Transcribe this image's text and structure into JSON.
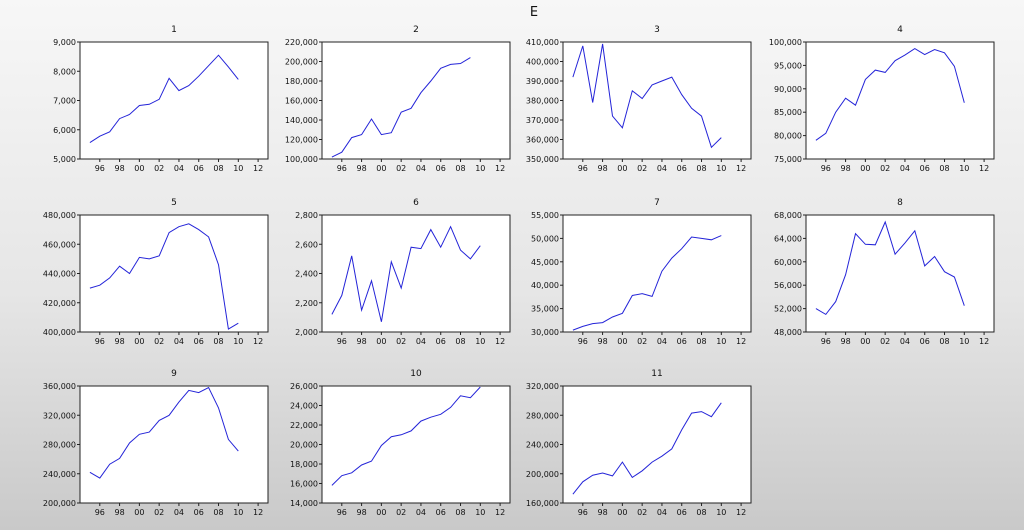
{
  "window": {
    "title": "E"
  },
  "colors": {
    "line": "#2424d8",
    "plot_bg": "#ffffff"
  },
  "x_tick_labels": [
    "96",
    "98",
    "00",
    "02",
    "04",
    "06",
    "08",
    "10",
    "12"
  ],
  "chart_data": [
    {
      "type": "line",
      "title": "1",
      "x": [
        1995,
        1996,
        1997,
        1998,
        1999,
        2000,
        2001,
        2002,
        2003,
        2004,
        2005,
        2006,
        2007,
        2008,
        2009,
        2010
      ],
      "y": [
        5560,
        5780,
        5930,
        6380,
        6520,
        6830,
        6870,
        7040,
        7760,
        7340,
        7510,
        7830,
        8190,
        8550,
        8150,
        7720
      ],
      "xlim": [
        1994,
        2013
      ],
      "ylim": [
        5000,
        9000
      ],
      "yticks": [
        "5,000",
        "6,000",
        "7,000",
        "8,000",
        "9,000"
      ],
      "grid": false
    },
    {
      "type": "line",
      "title": "2",
      "x": [
        1995,
        1996,
        1997,
        1998,
        1999,
        2000,
        2001,
        2002,
        2003,
        2004,
        2005,
        2006,
        2007,
        2008,
        2009
      ],
      "y": [
        102000,
        107000,
        122000,
        125000,
        141000,
        125000,
        127000,
        148000,
        152000,
        168000,
        180000,
        193000,
        197000,
        198000,
        204000
      ],
      "xlim": [
        1994,
        2013
      ],
      "ylim": [
        100000,
        220000
      ],
      "yticks": [
        "100,000",
        "120,000",
        "140,000",
        "160,000",
        "180,000",
        "200,000",
        "220,000"
      ],
      "grid": false
    },
    {
      "type": "line",
      "title": "3",
      "x": [
        1995,
        1996,
        1997,
        1998,
        1999,
        2000,
        2001,
        2002,
        2003,
        2004,
        2005,
        2006,
        2007,
        2008,
        2009,
        2010
      ],
      "y": [
        392000,
        408000,
        379000,
        409000,
        372000,
        366000,
        385000,
        381000,
        388000,
        390000,
        392000,
        383000,
        376000,
        372000,
        356000,
        361000
      ],
      "xlim": [
        1994,
        2013
      ],
      "ylim": [
        350000,
        410000
      ],
      "yticks": [
        "350,000",
        "360,000",
        "370,000",
        "380,000",
        "390,000",
        "400,000",
        "410,000"
      ],
      "grid": false
    },
    {
      "type": "line",
      "title": "4",
      "x": [
        1995,
        1996,
        1997,
        1998,
        1999,
        2000,
        2001,
        2002,
        2003,
        2004,
        2005,
        2006,
        2007,
        2008,
        2009,
        2010
      ],
      "y": [
        79000,
        80500,
        85000,
        88000,
        86500,
        92000,
        94000,
        93500,
        96000,
        97200,
        98600,
        97300,
        98400,
        97700,
        94800,
        87000
      ],
      "xlim": [
        1994,
        2013
      ],
      "ylim": [
        75000,
        100000
      ],
      "yticks": [
        "75,000",
        "80,000",
        "85,000",
        "90,000",
        "95,000",
        "100,000"
      ],
      "grid": false
    },
    {
      "type": "line",
      "title": "5",
      "x": [
        1995,
        1996,
        1997,
        1998,
        1999,
        2000,
        2001,
        2002,
        2003,
        2004,
        2005,
        2006,
        2007,
        2008,
        2009,
        2010
      ],
      "y": [
        430000,
        432000,
        437000,
        445000,
        440000,
        451000,
        450000,
        452000,
        468000,
        472000,
        474000,
        470000,
        465000,
        446000,
        402000,
        406000
      ],
      "xlim": [
        1994,
        2013
      ],
      "ylim": [
        400000,
        480000
      ],
      "yticks": [
        "400,000",
        "420,000",
        "440,000",
        "460,000",
        "480,000"
      ],
      "grid": false
    },
    {
      "type": "line",
      "title": "6",
      "x": [
        1995,
        1996,
        1997,
        1998,
        1999,
        2000,
        2001,
        2002,
        2003,
        2004,
        2005,
        2006,
        2007,
        2008,
        2009,
        2010
      ],
      "y": [
        2120,
        2250,
        2520,
        2150,
        2350,
        2070,
        2480,
        2300,
        2580,
        2570,
        2700,
        2580,
        2720,
        2560,
        2500,
        2590
      ],
      "xlim": [
        1994,
        2013
      ],
      "ylim": [
        2000,
        2800
      ],
      "yticks": [
        "2,000",
        "2,200",
        "2,400",
        "2,600",
        "2,800"
      ],
      "grid": false
    },
    {
      "type": "line",
      "title": "7",
      "x": [
        1995,
        1996,
        1997,
        1998,
        1999,
        2000,
        2001,
        2002,
        2003,
        2004,
        2005,
        2006,
        2007,
        2008,
        2009,
        2010
      ],
      "y": [
        30400,
        31200,
        31800,
        32000,
        33200,
        34000,
        37800,
        38200,
        37600,
        43000,
        45800,
        47800,
        50300,
        50000,
        49700,
        50600
      ],
      "xlim": [
        1994,
        2013
      ],
      "ylim": [
        30000,
        55000
      ],
      "yticks": [
        "30,000",
        "35,000",
        "40,000",
        "45,000",
        "50,000",
        "55,000"
      ],
      "grid": false
    },
    {
      "type": "line",
      "title": "8",
      "x": [
        1995,
        1996,
        1997,
        1998,
        1999,
        2000,
        2001,
        2002,
        2003,
        2004,
        2005,
        2006,
        2007,
        2008,
        2009,
        2010
      ],
      "y": [
        52000,
        51000,
        53200,
        57800,
        64800,
        63000,
        62900,
        66800,
        61300,
        63200,
        65300,
        59300,
        60900,
        58300,
        57400,
        52500
      ],
      "xlim": [
        1994,
        2013
      ],
      "ylim": [
        48000,
        68000
      ],
      "yticks": [
        "48,000",
        "52,000",
        "56,000",
        "60,000",
        "64,000",
        "68,000"
      ],
      "grid": false
    },
    {
      "type": "line",
      "title": "9",
      "x": [
        1995,
        1996,
        1997,
        1998,
        1999,
        2000,
        2001,
        2002,
        2003,
        2004,
        2005,
        2006,
        2007,
        2008,
        2009,
        2010
      ],
      "y": [
        242000,
        234000,
        253000,
        261000,
        282000,
        294000,
        297000,
        313000,
        320000,
        338000,
        354000,
        351000,
        358000,
        330000,
        287000,
        271000
      ],
      "xlim": [
        1994,
        2013
      ],
      "ylim": [
        200000,
        360000
      ],
      "yticks": [
        "200,000",
        "240,000",
        "280,000",
        "320,000",
        "360,000"
      ],
      "grid": false
    },
    {
      "type": "line",
      "title": "10",
      "x": [
        1995,
        1996,
        1997,
        1998,
        1999,
        2000,
        2001,
        2002,
        2003,
        2004,
        2005,
        2006,
        2007,
        2008,
        2009,
        2010
      ],
      "y": [
        15800,
        16800,
        17100,
        17900,
        18300,
        19900,
        20800,
        21000,
        21400,
        22400,
        22800,
        23100,
        23800,
        25000,
        24800,
        25900
      ],
      "xlim": [
        1994,
        2013
      ],
      "ylim": [
        14000,
        26000
      ],
      "yticks": [
        "14,000",
        "16,000",
        "18,000",
        "20,000",
        "22,000",
        "24,000",
        "26,000"
      ],
      "grid": false
    },
    {
      "type": "line",
      "title": "11",
      "x": [
        1995,
        1996,
        1997,
        1998,
        1999,
        2000,
        2001,
        2002,
        2003,
        2004,
        2005,
        2006,
        2007,
        2008,
        2009,
        2010
      ],
      "y": [
        172000,
        189000,
        198000,
        201000,
        197000,
        216000,
        195000,
        204000,
        216000,
        224000,
        234000,
        260000,
        283000,
        285000,
        278000,
        297000
      ],
      "xlim": [
        1994,
        2013
      ],
      "ylim": [
        160000,
        320000
      ],
      "yticks": [
        "160,000",
        "200,000",
        "240,000",
        "280,000",
        "320,000"
      ],
      "grid": false
    }
  ]
}
